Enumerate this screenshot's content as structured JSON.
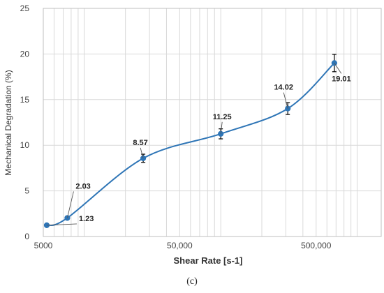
{
  "chart_data": {
    "type": "line",
    "xlabel": "Shear Rate [s-1]",
    "ylabel": "Mechanical Degradation (%)",
    "x_scale": "log",
    "xlim": [
      5000,
      1500000
    ],
    "ylim": [
      0,
      25
    ],
    "x_ticks": [
      {
        "value": 5000,
        "label": "5000"
      },
      {
        "value": 50000,
        "label": "50,000"
      },
      {
        "value": 500000,
        "label": "500,000"
      }
    ],
    "y_ticks": [
      0,
      5,
      10,
      15,
      20,
      25
    ],
    "grid": true,
    "series_color": "#2e75b6",
    "points": [
      {
        "x": 5300,
        "y": 1.23,
        "err": 0.1,
        "label": "1.23"
      },
      {
        "x": 7500,
        "y": 2.03,
        "err": 0.15,
        "label": "2.03"
      },
      {
        "x": 27000,
        "y": 8.57,
        "err": 0.45,
        "label": "8.57"
      },
      {
        "x": 100000,
        "y": 11.25,
        "err": 0.55,
        "label": "11.25"
      },
      {
        "x": 310000,
        "y": 14.02,
        "err": 0.65,
        "label": "14.02"
      },
      {
        "x": 680000,
        "y": 19.01,
        "err": 0.95,
        "label": "19.01"
      }
    ]
  },
  "caption": "(c)"
}
